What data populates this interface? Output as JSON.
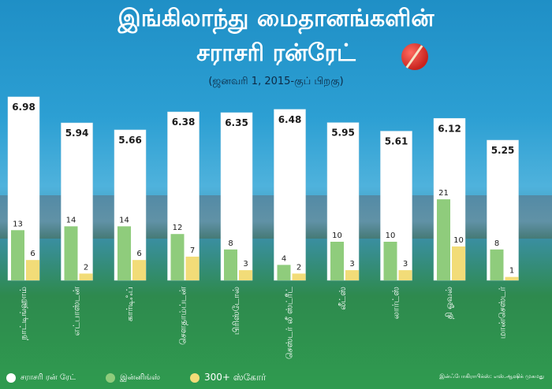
{
  "title_line1": "இங்கிலாந்து மைதானங்களின்",
  "title_line2": "சராசரி ரன்ரேட்",
  "subtitle": "(ஜனவரி 1, 2015-குப் பிறகு)",
  "credit": "இன்ஃபோகிராபிக்ஸ்: எஸ்.ஆஷிக் முகமது",
  "colors": {
    "run_rate": "#ffffff",
    "innings": "#8fcc7c",
    "score300": "#f2dc78"
  },
  "chart_data": {
    "type": "bar",
    "categories": [
      "நாட்டிங்ஹாம்",
      "எட்பாஸ்டன்",
      "கார்டிஃப்",
      "சௌதாம்ப்டன்",
      "பிரிஸ்டோல்",
      "செஸ்டர் லீ ஸ்ட்ரீட்",
      "லீட்ஸ்",
      "லார்ட்ஸ்",
      "தி ஓவல்",
      "மான்செஸ்டர்"
    ],
    "series": [
      {
        "name": "சராசரி ரன் ரேட்",
        "values": [
          6.98,
          5.94,
          5.66,
          6.38,
          6.35,
          6.48,
          5.95,
          5.61,
          6.12,
          5.25
        ],
        "labels": [
          "6.98",
          "5.94",
          "5.66",
          "6.38",
          "6.35",
          "6.48",
          "5.95",
          "5.61",
          "6.12",
          "5.25"
        ]
      },
      {
        "name": "இன்னிங்ஸ்",
        "values": [
          13,
          14,
          14,
          12,
          8,
          4,
          10,
          10,
          21,
          8
        ]
      },
      {
        "name": "300+ ஸ்கோர்",
        "values": [
          6,
          2,
          6,
          7,
          3,
          2,
          3,
          3,
          10,
          1
        ]
      }
    ]
  }
}
